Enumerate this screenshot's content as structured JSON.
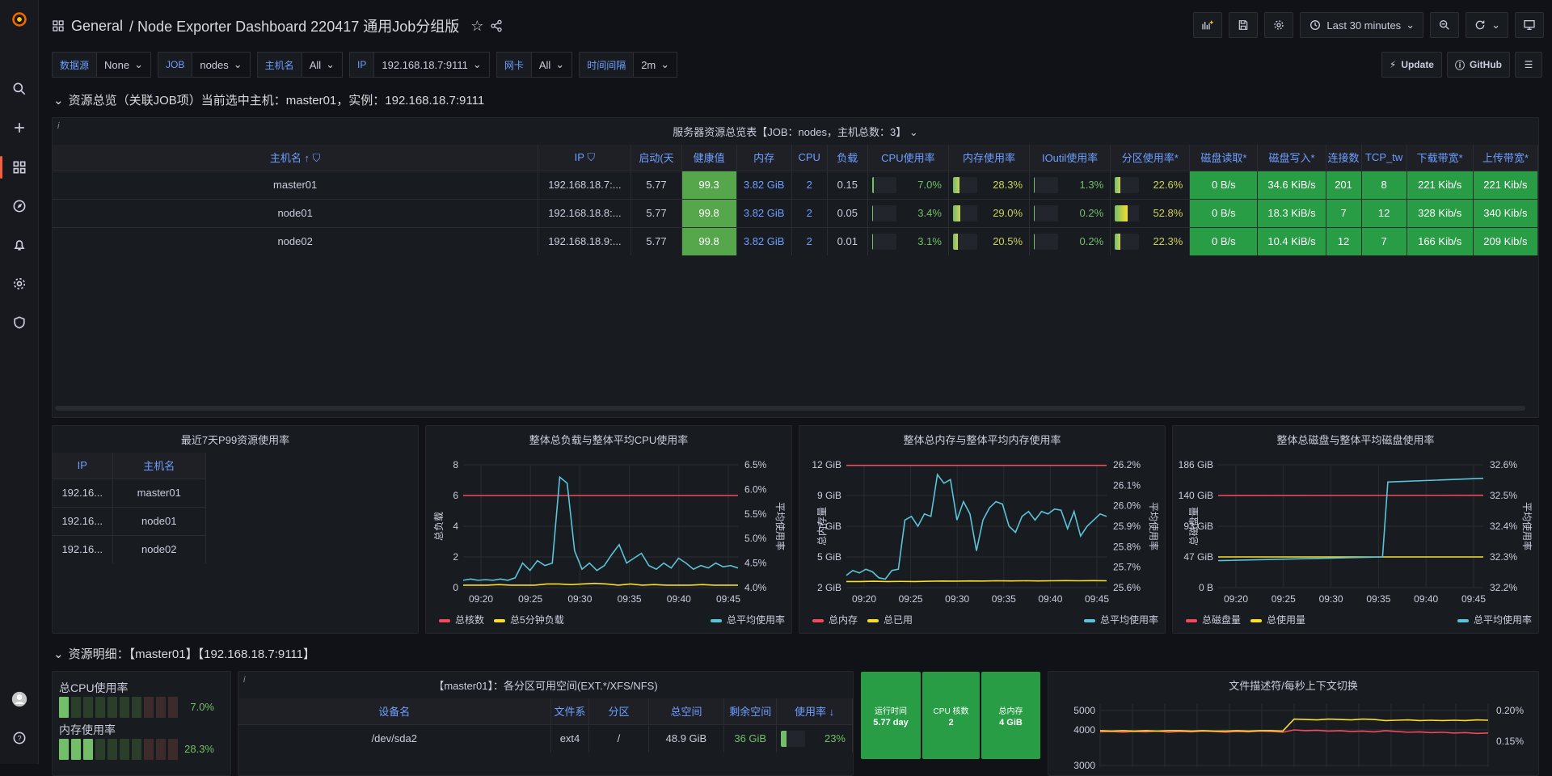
{
  "app": {
    "breadcrumb_folder": "General",
    "dashboard_title": "/ Node Exporter Dashboard 220417 通用Job分组版",
    "time_range": "Last 30 minutes"
  },
  "vars": [
    {
      "label": "数据源",
      "value": "None"
    },
    {
      "label": "JOB",
      "value": "nodes"
    },
    {
      "label": "主机名",
      "value": "All"
    },
    {
      "label": "IP",
      "value": "192.168.18.7:9111"
    },
    {
      "label": "网卡",
      "value": "All"
    },
    {
      "label": "时间间隔",
      "value": "2m"
    }
  ],
  "links": {
    "update": "Update",
    "github": "GitHub"
  },
  "row1": {
    "title": "资源总览（关联JOB项）当前选中主机：master01，实例：192.168.18.7:9111"
  },
  "overview": {
    "title": "服务器资源总览表【JOB：nodes，主机总数：3】",
    "columns": [
      "主机名",
      "IP",
      "启动(天",
      "健康值",
      "内存",
      "CPU",
      "负载",
      "CPU使用率",
      "内存使用率",
      "IOutil使用率",
      "分区使用率*",
      "磁盘读取*",
      "磁盘写入*",
      "连接数",
      "TCP_tw",
      "下载带宽*",
      "上传带宽*"
    ],
    "rows": [
      {
        "host": "master01",
        "ip": "192.168.18.7:...",
        "uptime": "5.77",
        "health": "99.3",
        "mem": "3.82 GiB",
        "cpu": "2",
        "load": "0.15",
        "cpu_pct": "7.0%",
        "cpu_v": 0.07,
        "mem_pct": "28.3%",
        "mem_v": 0.283,
        "io_pct": "1.3%",
        "io_v": 0.013,
        "part_pct": "22.6%",
        "part_v": 0.226,
        "read": "0 B/s",
        "write": "34.6 KiB/s",
        "conn": "201",
        "tcptw": "8",
        "down": "221 Kib/s",
        "up": "221 Kib/s"
      },
      {
        "host": "node01",
        "ip": "192.168.18.8:...",
        "uptime": "5.77",
        "health": "99.8",
        "mem": "3.82 GiB",
        "cpu": "2",
        "load": "0.05",
        "cpu_pct": "3.4%",
        "cpu_v": 0.034,
        "mem_pct": "29.0%",
        "mem_v": 0.29,
        "io_pct": "0.2%",
        "io_v": 0.002,
        "part_pct": "52.8%",
        "part_v": 0.528,
        "read": "0 B/s",
        "write": "18.3 KiB/s",
        "conn": "7",
        "tcptw": "12",
        "down": "328 Kib/s",
        "up": "340 Kib/s"
      },
      {
        "host": "node02",
        "ip": "192.168.18.9:...",
        "uptime": "5.77",
        "health": "99.8",
        "mem": "3.82 GiB",
        "cpu": "2",
        "load": "0.01",
        "cpu_pct": "3.1%",
        "cpu_v": 0.031,
        "mem_pct": "20.5%",
        "mem_v": 0.205,
        "io_pct": "0.2%",
        "io_v": 0.002,
        "part_pct": "22.3%",
        "part_v": 0.223,
        "read": "0 B/s",
        "write": "10.4 KiB/s",
        "conn": "12",
        "tcptw": "7",
        "down": "166 Kib/s",
        "up": "209 Kib/s"
      }
    ]
  },
  "p99": {
    "title": "最近7天P99资源使用率",
    "col_ip": "IP",
    "col_host": "主机名",
    "rows": [
      {
        "ip": "192.16...",
        "host": "master01"
      },
      {
        "ip": "192.16...",
        "host": "node01"
      },
      {
        "ip": "192.16...",
        "host": "node02"
      }
    ]
  },
  "chart_data": [
    {
      "type": "line",
      "title": "整体总负载与整体平均CPU使用率",
      "ylabel": "总负载",
      "y2label": "平均使用率",
      "x": [
        "09:20",
        "09:25",
        "09:30",
        "09:35",
        "09:40",
        "09:45"
      ],
      "yticks": [
        "0",
        "2",
        "4",
        "6",
        "8"
      ],
      "y2ticks": [
        "4.0%",
        "4.5%",
        "5.0%",
        "5.5%",
        "6.0%",
        "6.5%"
      ],
      "legend": [
        "总核数",
        "总5分钟负载",
        "总平均使用率"
      ],
      "colors": [
        "#f2495c",
        "#fade2a",
        "#5ac4d8"
      ]
    },
    {
      "type": "line",
      "title": "整体总内存与整体平均内存使用率",
      "ylabel": "总内存量",
      "y2label": "平均使用率",
      "x": [
        "09:20",
        "09:25",
        "09:30",
        "09:35",
        "09:40",
        "09:45"
      ],
      "yticks": [
        "2 GiB",
        "5 GiB",
        "7 GiB",
        "9 GiB",
        "12 GiB"
      ],
      "y2ticks": [
        "25.6%",
        "25.7%",
        "25.8%",
        "25.9%",
        "26.0%",
        "26.1%",
        "26.2%"
      ],
      "legend": [
        "总内存",
        "总已用",
        "总平均使用率"
      ],
      "colors": [
        "#f2495c",
        "#fade2a",
        "#5ac4d8"
      ]
    },
    {
      "type": "line",
      "title": "整体总磁盘与整体平均磁盘使用率",
      "ylabel": "总磁盘量",
      "y2label": "平均使用率",
      "x": [
        "09:20",
        "09:25",
        "09:30",
        "09:35",
        "09:40",
        "09:45"
      ],
      "yticks": [
        "0 B",
        "47 GiB",
        "93 GiB",
        "140 GiB",
        "186 GiB"
      ],
      "y2ticks": [
        "32.2%",
        "32.3%",
        "32.4%",
        "32.5%",
        "32.6%"
      ],
      "legend": [
        "总磁盘量",
        "总使用量",
        "总平均使用率"
      ],
      "colors": [
        "#f2495c",
        "#fade2a",
        "#5ac4d8"
      ]
    },
    {
      "type": "line",
      "title": "文件描述符/每秒上下文切换",
      "yticks": [
        "3000",
        "4000",
        "5000"
      ],
      "y2ticks": [
        "0.15%",
        "0.20%"
      ]
    }
  ],
  "row2": {
    "title": "资源明细：【master01】【192.168.18.7:9111】"
  },
  "bars": {
    "cpu_label": "总CPU使用率",
    "cpu_val": "7.0%",
    "cpu_level": 0.07,
    "mem_label": "内存使用率",
    "mem_val": "28.3%",
    "mem_level": 0.283
  },
  "partitions": {
    "title": "【master01】：各分区可用空间(EXT.*/XFS/NFS)",
    "columns": [
      "设备名",
      "文件系",
      "分区",
      "总空间",
      "剩余空间",
      "使用率"
    ],
    "rows": [
      {
        "dev": "/dev/sda2",
        "fs": "ext4",
        "mount": "/",
        "total": "48.9 GiB",
        "free": "36 GiB",
        "usage": "23%",
        "usage_v": 0.23
      }
    ]
  },
  "stats": [
    {
      "label": "运行时间",
      "value": "5.77 day"
    },
    {
      "label": "CPU 核数",
      "value": "2"
    },
    {
      "label": "总内存",
      "value": "4 GiB"
    }
  ]
}
